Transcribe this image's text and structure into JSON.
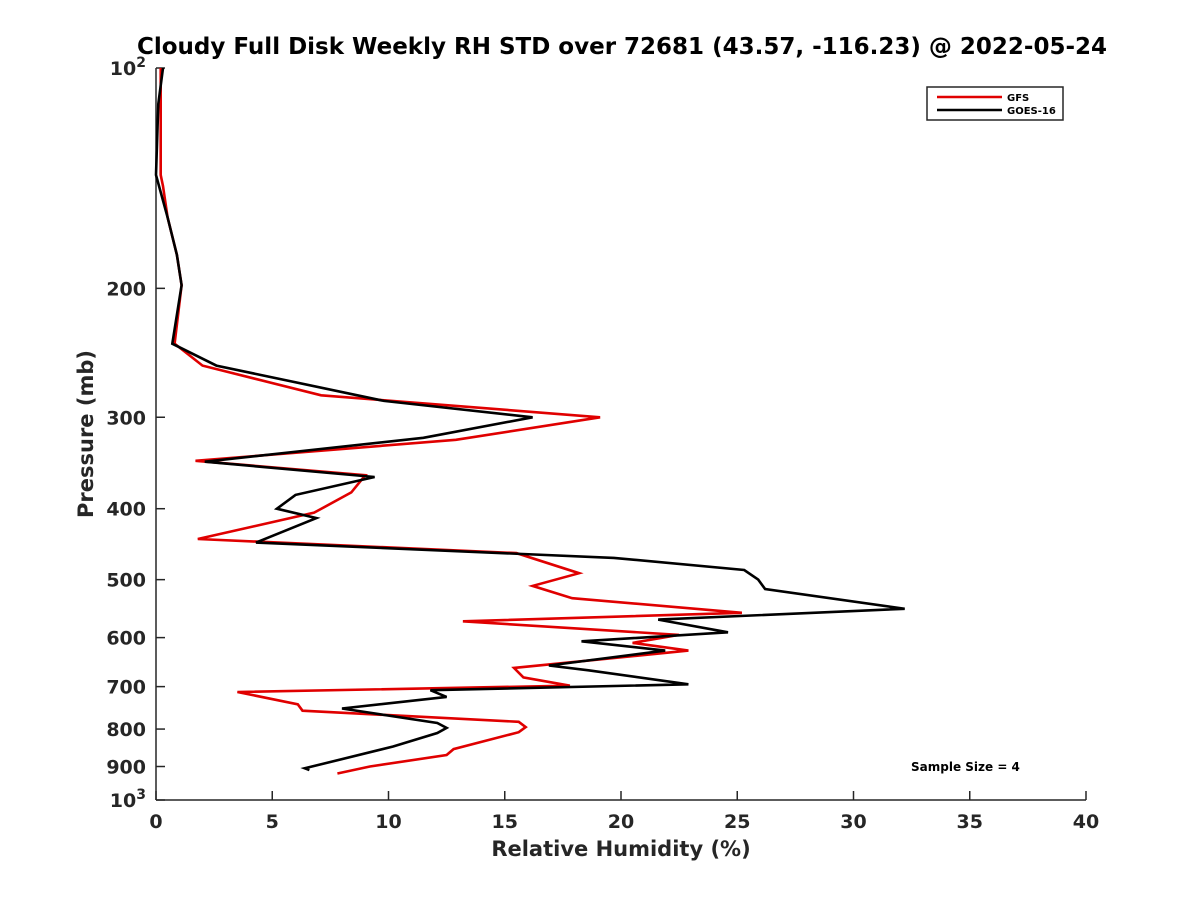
{
  "chart_data": {
    "type": "line",
    "title": "Cloudy Full Disk Weekly RH STD over 72681 (43.57, -116.23) @ 2022-05-24",
    "xlabel": "Relative Humidity (%)",
    "ylabel": "Pressure (mb)",
    "xlim": [
      0,
      40
    ],
    "ylim": [
      100,
      1000
    ],
    "yscale": "log",
    "y_reversed": true,
    "grid": false,
    "legend_position": "top-right",
    "x_ticks": [
      "0",
      "5",
      "10",
      "15",
      "20",
      "25",
      "30",
      "35",
      "40"
    ],
    "y_ticks": [
      {
        "value": 100,
        "base": "10",
        "exp": "2"
      },
      {
        "value": 200,
        "label": "200"
      },
      {
        "value": 300,
        "label": "300"
      },
      {
        "value": 400,
        "label": "400"
      },
      {
        "value": 500,
        "label": "500"
      },
      {
        "value": 600,
        "label": "600"
      },
      {
        "value": 700,
        "label": "700"
      },
      {
        "value": 800,
        "label": "800"
      },
      {
        "value": 900,
        "label": "900"
      },
      {
        "value": 1000,
        "base": "10",
        "exp": "3"
      }
    ],
    "series": [
      {
        "name": "GFS",
        "color": "#e00000",
        "points": [
          [
            0.2,
            100
          ],
          [
            0.2,
            110
          ],
          [
            0.2,
            125
          ],
          [
            0.2,
            140
          ],
          [
            0.3,
            145
          ],
          [
            0.5,
            160
          ],
          [
            0.9,
            180
          ],
          [
            1.1,
            198
          ],
          [
            0.8,
            238
          ],
          [
            2.0,
            255
          ],
          [
            7.1,
            280
          ],
          [
            19.1,
            300
          ],
          [
            12.9,
            322
          ],
          [
            1.7,
            344
          ],
          [
            9.0,
            360
          ],
          [
            8.4,
            380
          ],
          [
            6.8,
            405
          ],
          [
            1.8,
            440
          ],
          [
            15.5,
            460
          ],
          [
            18.2,
            490
          ],
          [
            16.2,
            510
          ],
          [
            17.9,
            530
          ],
          [
            25.2,
            555
          ],
          [
            13.2,
            570
          ],
          [
            22.5,
            595
          ],
          [
            20.5,
            610
          ],
          [
            22.9,
            625
          ],
          [
            15.4,
            660
          ],
          [
            15.8,
            680
          ],
          [
            17.8,
            698
          ],
          [
            3.5,
            712
          ],
          [
            6.1,
            740
          ],
          [
            6.3,
            755
          ],
          [
            15.6,
            782
          ],
          [
            15.9,
            795
          ],
          [
            15.6,
            808
          ],
          [
            12.8,
            852
          ],
          [
            12.5,
            868
          ],
          [
            9.2,
            900
          ],
          [
            7.8,
            920
          ]
        ]
      },
      {
        "name": "GOES-16",
        "color": "#000000",
        "points": [
          [
            0.3,
            100
          ],
          [
            0.1,
            112
          ],
          [
            0.0,
            140
          ],
          [
            0.5,
            160
          ],
          [
            0.9,
            180
          ],
          [
            1.1,
            198
          ],
          [
            0.7,
            238
          ],
          [
            2.6,
            255
          ],
          [
            9.8,
            285
          ],
          [
            16.2,
            300
          ],
          [
            11.5,
            320
          ],
          [
            2.1,
            345
          ],
          [
            9.4,
            362
          ],
          [
            6.0,
            383
          ],
          [
            5.2,
            400
          ],
          [
            6.9,
            412
          ],
          [
            4.3,
            445
          ],
          [
            19.7,
            467
          ],
          [
            25.3,
            485
          ],
          [
            25.9,
            500
          ],
          [
            26.2,
            515
          ],
          [
            32.2,
            548
          ],
          [
            21.6,
            567
          ],
          [
            24.6,
            590
          ],
          [
            18.3,
            607
          ],
          [
            21.9,
            625
          ],
          [
            16.9,
            655
          ],
          [
            18.6,
            665
          ],
          [
            22.9,
            695
          ],
          [
            11.8,
            708
          ],
          [
            12.5,
            723
          ],
          [
            8.0,
            750
          ],
          [
            12.1,
            785
          ],
          [
            12.5,
            797
          ],
          [
            12.1,
            810
          ],
          [
            10.2,
            845
          ],
          [
            6.4,
            905
          ],
          [
            6.6,
            910
          ]
        ]
      }
    ],
    "annotation": "Sample Size = 4"
  }
}
